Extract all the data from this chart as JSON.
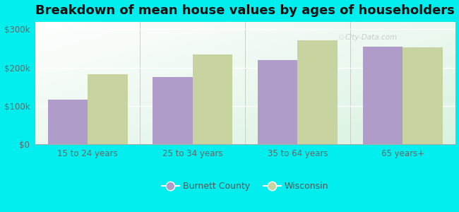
{
  "title": "Breakdown of mean house values by ages of householders",
  "categories": [
    "15 to 24 years",
    "25 to 34 years",
    "35 to 64 years",
    "65 years+"
  ],
  "burnett_values": [
    115000,
    175000,
    220000,
    255000
  ],
  "wisconsin_values": [
    182000,
    235000,
    272000,
    252000
  ],
  "bar_color_burnett": "#b09cc8",
  "bar_color_wisconsin": "#c8d4a0",
  "ylim": [
    0,
    320000
  ],
  "yticks": [
    0,
    100000,
    200000,
    300000
  ],
  "ytick_labels": [
    "$0",
    "$100k",
    "$200k",
    "$300k"
  ],
  "legend_labels": [
    "Burnett County",
    "Wisconsin"
  ],
  "background_color": "#00eeee",
  "title_fontsize": 13,
  "bar_width": 0.38,
  "watermark": "City-Data.com"
}
